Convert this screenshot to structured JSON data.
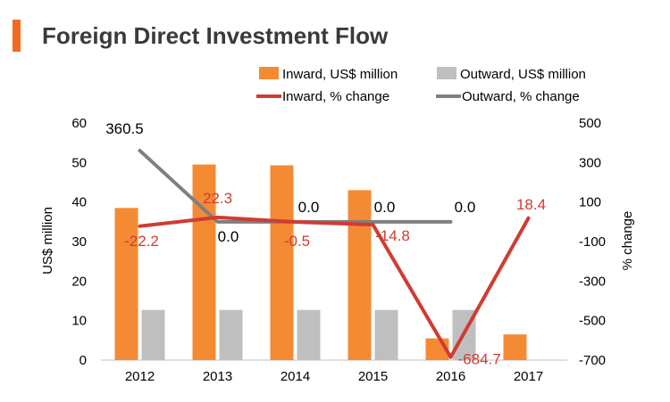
{
  "page": {
    "title": "Foreign Direct Investment Flow"
  },
  "colors": {
    "accent": "#F26B21",
    "inward_bar": "#F58A34",
    "outward_bar": "#BFBFBF",
    "inward_line": "#D13B32",
    "outward_line": "#7F7F7F",
    "axis_text": "#000000"
  },
  "chart_data": {
    "type": "bar",
    "title": "Foreign Direct Investment Flow",
    "categories": [
      "2012",
      "2013",
      "2014",
      "2015",
      "2016",
      "2017"
    ],
    "ylabel": "US$ million",
    "y2label": "% change",
    "ylim": [
      0,
      60
    ],
    "y2lim": [
      -700,
      500
    ],
    "yticks": [
      0,
      10,
      20,
      30,
      40,
      50,
      60
    ],
    "y2ticks": [
      500,
      300,
      100,
      -100,
      -300,
      -500,
      -700
    ],
    "legend_position": "top-right",
    "grid": false,
    "bar_series": [
      {
        "name": "Inward, US$ million",
        "values": [
          38.5,
          49.5,
          49.3,
          43.0,
          5.5,
          6.5
        ]
      },
      {
        "name": "Outward, US$ million",
        "values": [
          12.7,
          12.7,
          12.7,
          12.7,
          12.7,
          null
        ]
      }
    ],
    "line_series": [
      {
        "name": "Inward, % change",
        "axis": "right",
        "values": [
          -22.2,
          22.3,
          -0.5,
          -14.8,
          -684.7,
          18.4
        ],
        "labels": [
          "-22.2",
          "22.3",
          "-0.5",
          "-14.8",
          "-684.7",
          "18.4"
        ]
      },
      {
        "name": "Outward, % change",
        "axis": "right",
        "values": [
          360.5,
          0.0,
          0.0,
          0.0,
          0.0,
          null
        ],
        "labels": [
          "360.5",
          "0.0",
          "0.0",
          "0.0",
          "0.0",
          null
        ]
      }
    ]
  }
}
